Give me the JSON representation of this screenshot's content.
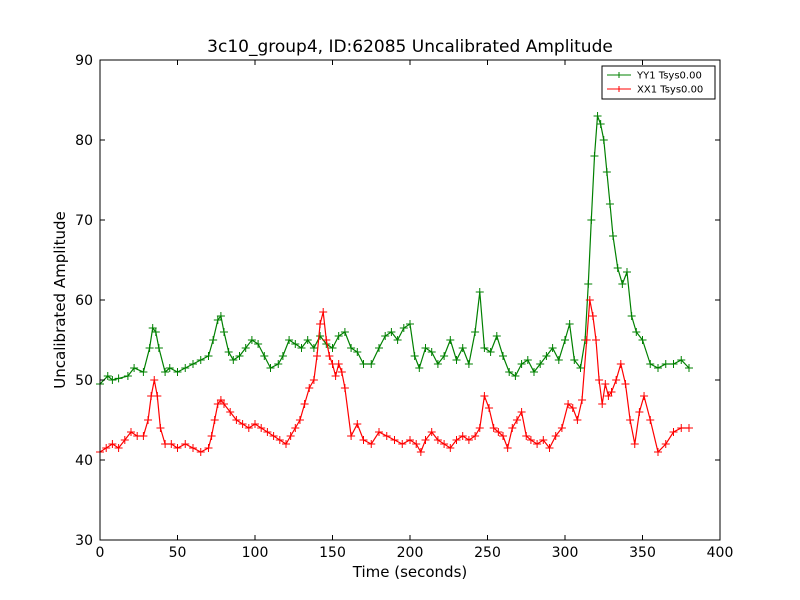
{
  "chart_data": {
    "type": "line",
    "title": "3c10_group4, ID:62085 Uncalibrated Amplitude",
    "xlabel": "Time (seconds)",
    "ylabel": "Uncalibrated Amplitude",
    "xlim": [
      0,
      400
    ],
    "ylim": [
      30,
      90
    ],
    "x_ticks": [
      "0",
      "50",
      "100",
      "150",
      "200",
      "250",
      "300",
      "350",
      "400"
    ],
    "y_ticks": [
      "30",
      "40",
      "50",
      "60",
      "70",
      "80",
      "90"
    ],
    "grid": false,
    "legend_position": "top-right",
    "series": [
      {
        "name": "YY1 Tsys0.00",
        "color": "#008000",
        "marker": "+",
        "x": [
          0,
          5,
          8,
          12,
          18,
          22,
          28,
          32,
          34,
          36,
          38,
          42,
          45,
          50,
          55,
          60,
          65,
          70,
          73,
          76,
          78,
          80,
          83,
          86,
          90,
          94,
          98,
          102,
          106,
          110,
          115,
          118,
          122,
          126,
          130,
          134,
          138,
          142,
          146,
          150,
          154,
          158,
          162,
          166,
          170,
          175,
          180,
          184,
          188,
          192,
          196,
          200,
          203,
          206,
          210,
          214,
          218,
          222,
          226,
          230,
          234,
          238,
          242,
          245,
          248,
          252,
          256,
          260,
          264,
          268,
          272,
          276,
          280,
          284,
          288,
          292,
          296,
          300,
          303,
          306,
          310,
          313,
          315,
          317,
          319,
          321,
          323,
          325,
          327,
          329,
          331,
          334,
          337,
          340,
          343,
          346,
          350,
          355,
          360,
          365,
          370,
          375,
          380
        ],
        "y": [
          49.5,
          50.5,
          50,
          50.2,
          50.5,
          51.5,
          51,
          54,
          56.5,
          56,
          54,
          51,
          51.5,
          51,
          51.5,
          52,
          52.5,
          53,
          55,
          57.5,
          58,
          56,
          53.5,
          52.5,
          53,
          54,
          55,
          54.5,
          53,
          51.5,
          52,
          53,
          55,
          54.5,
          54,
          55,
          54,
          55.5,
          54.5,
          54,
          55.5,
          56,
          54,
          53.5,
          52,
          52,
          54,
          55.5,
          56,
          55,
          56.5,
          57,
          53,
          51.5,
          54,
          53.5,
          52,
          53,
          55,
          52.5,
          54,
          52,
          56,
          61,
          54,
          53.5,
          55.5,
          53,
          51,
          50.5,
          52,
          52.5,
          51,
          52,
          53,
          54,
          52.5,
          55,
          57,
          52.5,
          51.5,
          55,
          62,
          70,
          78,
          83,
          82,
          80,
          76,
          72,
          68,
          64,
          62,
          63.5,
          58,
          56,
          55,
          52,
          51.5,
          52,
          52,
          52.5,
          51.5
        ]
      },
      {
        "name": "XX1 Tsys0.00",
        "color": "#ff0000",
        "marker": "+",
        "x": [
          0,
          4,
          8,
          12,
          16,
          20,
          24,
          28,
          31,
          33,
          35,
          37,
          39,
          42,
          46,
          50,
          55,
          60,
          65,
          70,
          72,
          74,
          76,
          78,
          80,
          84,
          88,
          92,
          96,
          100,
          104,
          108,
          112,
          116,
          120,
          123,
          126,
          129,
          132,
          135,
          138,
          140,
          142,
          144,
          146,
          148,
          150,
          152,
          154,
          156,
          158,
          162,
          166,
          170,
          175,
          180,
          185,
          190,
          195,
          200,
          204,
          207,
          210,
          214,
          218,
          222,
          226,
          230,
          234,
          238,
          242,
          245,
          248,
          251,
          254,
          257,
          260,
          263,
          266,
          269,
          272,
          275,
          278,
          282,
          286,
          290,
          294,
          298,
          302,
          305,
          308,
          311,
          314,
          316,
          318,
          320,
          322,
          324,
          326,
          328,
          330,
          333,
          336,
          339,
          342,
          345,
          348,
          351,
          355,
          360,
          365,
          370,
          375,
          380
        ],
        "y": [
          41,
          41.5,
          42,
          41.5,
          42.5,
          43.5,
          43,
          43,
          45,
          48,
          50,
          48,
          44,
          42,
          42,
          41.5,
          42,
          41.5,
          41,
          41.5,
          43,
          45,
          47,
          47.5,
          47,
          46,
          45,
          44.5,
          44,
          44.5,
          44,
          43.5,
          43,
          42.5,
          42,
          43,
          44,
          45,
          47,
          49,
          50,
          53,
          57,
          58.5,
          55,
          53,
          52,
          50.5,
          52,
          51,
          49,
          43,
          44.5,
          42.5,
          42,
          43.5,
          43,
          42.5,
          42,
          42.5,
          42,
          41,
          42.5,
          43.5,
          42.5,
          42,
          41.5,
          42.5,
          43,
          42.5,
          43,
          44,
          48,
          46.5,
          44,
          43.5,
          43,
          41.5,
          44,
          45,
          46,
          43,
          42.5,
          42,
          42.5,
          41.5,
          43,
          44,
          47,
          46.5,
          45,
          47.5,
          55,
          60,
          58,
          55,
          50,
          47,
          49.5,
          48,
          48.5,
          50,
          52,
          49.5,
          45,
          42,
          46,
          48,
          45,
          41,
          42,
          43.5,
          44,
          44
        ]
      }
    ]
  }
}
